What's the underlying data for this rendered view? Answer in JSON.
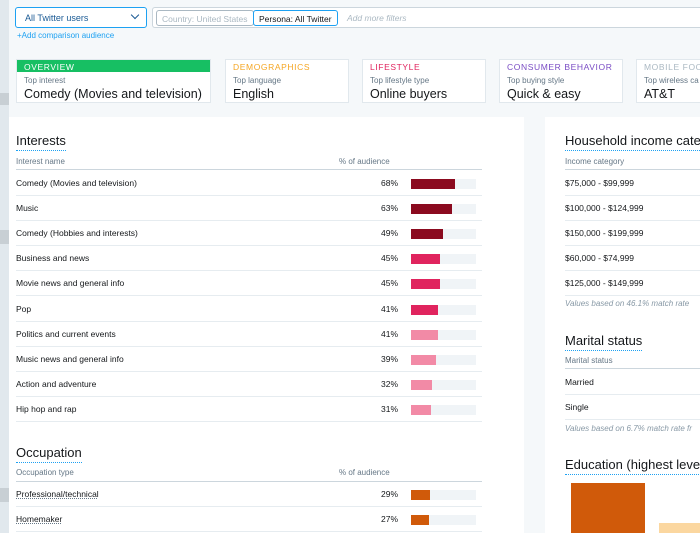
{
  "filters": {
    "audience_select": "All Twitter users",
    "country_chip": "Country: United States",
    "persona_chip": "Persona: All Twitter",
    "add_more_placeholder": "Add more filters",
    "add_comparison": "+Add comparison audience"
  },
  "tabs": [
    {
      "caption": "OVERVIEW",
      "label": "Top interest",
      "value": "Comedy (Movies and television)",
      "color": "#17bf63"
    },
    {
      "caption": "DEMOGRAPHICS",
      "label": "Top language",
      "value": "English",
      "color": "#f5a623"
    },
    {
      "caption": "LIFESTYLE",
      "label": "Top lifestyle type",
      "value": "Online buyers",
      "color": "#e0245e"
    },
    {
      "caption": "CONSUMER BEHAVIOR",
      "label": "Top buying style",
      "value": "Quick & easy",
      "color": "#794bc4"
    },
    {
      "caption": "MOBILE FOO",
      "label": "Top wireless ca",
      "value": "AT&T",
      "color": "#aab8c2"
    }
  ],
  "interests": {
    "title": "Interests",
    "col_name": "Interest name",
    "col_pct": "% of audience",
    "rows": [
      {
        "name": "Comedy (Movies and television)",
        "pct": "68%",
        "value": 68,
        "color": "#8b0a1f"
      },
      {
        "name": "Music",
        "pct": "63%",
        "value": 63,
        "color": "#8b0a1f"
      },
      {
        "name": "Comedy (Hobbies and interests)",
        "pct": "49%",
        "value": 49,
        "color": "#8b0a1f"
      },
      {
        "name": "Business and news",
        "pct": "45%",
        "value": 45,
        "color": "#e0245e"
      },
      {
        "name": "Movie news and general info",
        "pct": "45%",
        "value": 45,
        "color": "#e0245e"
      },
      {
        "name": "Pop",
        "pct": "41%",
        "value": 41,
        "color": "#e0245e"
      },
      {
        "name": "Politics and current events",
        "pct": "41%",
        "value": 41,
        "color": "#f28aa6"
      },
      {
        "name": "Music news and general info",
        "pct": "39%",
        "value": 39,
        "color": "#f28aa6"
      },
      {
        "name": "Action and adventure",
        "pct": "32%",
        "value": 32,
        "color": "#f28aa6"
      },
      {
        "name": "Hip hop and rap",
        "pct": "31%",
        "value": 31,
        "color": "#f28aa6"
      }
    ]
  },
  "occupation": {
    "title": "Occupation",
    "col_name": "Occupation type",
    "col_pct": "% of audience",
    "rows": [
      {
        "name": "Professional/technical",
        "pct": "29%",
        "value": 29,
        "color": "#d05a0a"
      },
      {
        "name": "Homemaker",
        "pct": "27%",
        "value": 27,
        "color": "#d05a0a"
      }
    ]
  },
  "household_income": {
    "title": "Household income categ",
    "col_name": "Income category",
    "rows": [
      "$75,000 - $99,999",
      "$100,000 - $124,999",
      "$150,000 - $199,999",
      "$60,000 - $74,999",
      "$125,000 - $149,999"
    ],
    "note": "Values based on 46.1% match rate"
  },
  "marital": {
    "title": "Marital status",
    "col_name": "Marital status",
    "rows": [
      "Married",
      "Single"
    ],
    "note": "Values based on 6.7% match rate fr"
  },
  "education": {
    "title": "Education (highest level",
    "bars": [
      {
        "value": 1.0,
        "color": "#d05a0a"
      },
      {
        "value": 0.2,
        "color": "#fbd7a0"
      }
    ]
  }
}
